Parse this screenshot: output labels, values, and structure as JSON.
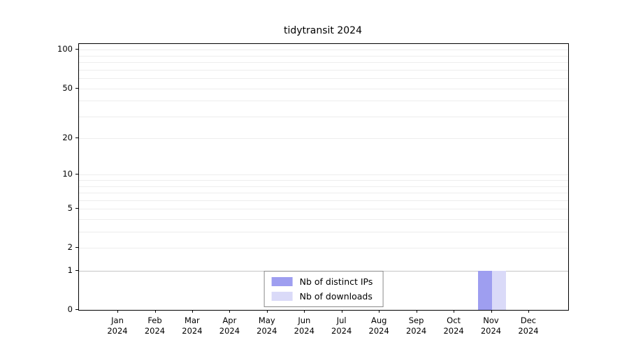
{
  "chart_data": {
    "type": "bar",
    "title": "tidytransit 2024",
    "categories": [
      "Jan 2024",
      "Feb 2024",
      "Mar 2024",
      "Apr 2024",
      "May 2024",
      "Jun 2024",
      "Jul 2024",
      "Aug 2024",
      "Sep 2024",
      "Oct 2024",
      "Nov 2024",
      "Dec 2024"
    ],
    "series": [
      {
        "name": "Nb of distinct IPs",
        "color": "#9e9ef0",
        "values": [
          0,
          0,
          0,
          0,
          0,
          0,
          0,
          0,
          0,
          0,
          1,
          0
        ]
      },
      {
        "name": "Nb of downloads",
        "color": "#dadaf8",
        "values": [
          0,
          0,
          0,
          0,
          0,
          0,
          0,
          0,
          0,
          0,
          1,
          0
        ]
      }
    ],
    "xlabel": "",
    "ylabel": "",
    "yticks": [
      0,
      1,
      2,
      5,
      10,
      20,
      50,
      100
    ],
    "scale": "log1p",
    "y_top": 111,
    "grid": true,
    "grid_values": [
      1,
      2,
      3,
      4,
      5,
      6,
      7,
      8,
      9,
      10,
      20,
      30,
      40,
      50,
      60,
      70,
      80,
      90,
      100
    ],
    "legend": {
      "position": "bottom-center",
      "entries": [
        "Nb of distinct IPs",
        "Nb of downloads"
      ]
    }
  }
}
